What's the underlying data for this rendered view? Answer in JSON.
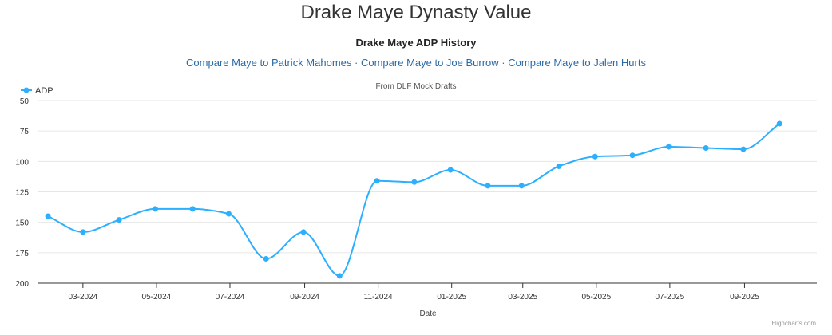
{
  "page": {
    "title": "Drake Maye Dynasty Value",
    "links": [
      "Compare Maye to Patrick Mahomes",
      "Compare Maye to Joe Burrow",
      "Compare Maye to Jalen Hurts"
    ],
    "separator": "·",
    "credits": "Highcharts.com"
  },
  "chart_data": {
    "type": "line",
    "title": "Drake Maye ADP History",
    "subtitle": "From DLF Mock Drafts",
    "xlabel": "Date",
    "ylabel": "",
    "y_reversed": true,
    "ylim": [
      50,
      200
    ],
    "yticks": [
      50,
      75,
      100,
      125,
      150,
      175,
      200
    ],
    "xlim": [
      "2024-01-24",
      "2025-10-31"
    ],
    "xticks": [
      {
        "date": "2024-03-01",
        "label": "03-2024"
      },
      {
        "date": "2024-05-01",
        "label": "05-2024"
      },
      {
        "date": "2024-07-01",
        "label": "07-2024"
      },
      {
        "date": "2024-09-01",
        "label": "09-2024"
      },
      {
        "date": "2024-11-01",
        "label": "11-2024"
      },
      {
        "date": "2025-01-01",
        "label": "01-2025"
      },
      {
        "date": "2025-03-01",
        "label": "03-2025"
      },
      {
        "date": "2025-05-01",
        "label": "05-2025"
      },
      {
        "date": "2025-07-01",
        "label": "07-2025"
      },
      {
        "date": "2025-09-01",
        "label": "09-2025"
      }
    ],
    "grid": true,
    "legend_position": "top-left",
    "color": "#2caffe",
    "series": [
      {
        "name": "ADP",
        "points": [
          {
            "x": "2024-02-01",
            "y": 145
          },
          {
            "x": "2024-03-01",
            "y": 158
          },
          {
            "x": "2024-03-31",
            "y": 148
          },
          {
            "x": "2024-04-30",
            "y": 139
          },
          {
            "x": "2024-05-31",
            "y": 139
          },
          {
            "x": "2024-06-30",
            "y": 143
          },
          {
            "x": "2024-07-31",
            "y": 180
          },
          {
            "x": "2024-08-31",
            "y": 158
          },
          {
            "x": "2024-09-30",
            "y": 194
          },
          {
            "x": "2024-10-31",
            "y": 116
          },
          {
            "x": "2024-12-01",
            "y": 117
          },
          {
            "x": "2024-12-31",
            "y": 107
          },
          {
            "x": "2025-01-31",
            "y": 120
          },
          {
            "x": "2025-02-28",
            "y": 120
          },
          {
            "x": "2025-03-31",
            "y": 104
          },
          {
            "x": "2025-04-30",
            "y": 96
          },
          {
            "x": "2025-05-31",
            "y": 95
          },
          {
            "x": "2025-06-30",
            "y": 88
          },
          {
            "x": "2025-07-31",
            "y": 89
          },
          {
            "x": "2025-08-31",
            "y": 90
          },
          {
            "x": "2025-09-30",
            "y": 69
          }
        ]
      }
    ]
  }
}
